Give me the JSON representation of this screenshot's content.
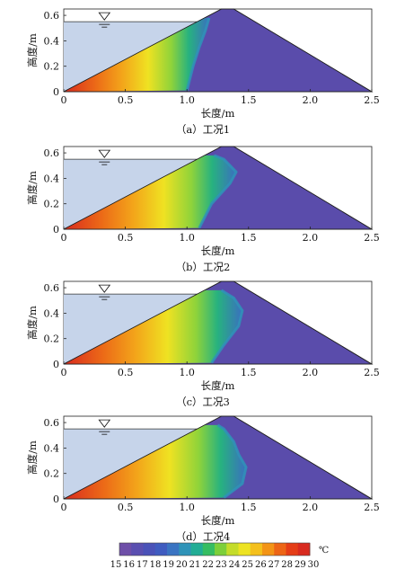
{
  "chart_data": [
    {
      "type": "heatmap",
      "caption": "（a）工况1",
      "xlabel": "长度/m",
      "ylabel": "高度/m",
      "xlim": [
        0,
        2.5
      ],
      "ylim": [
        0,
        0.65
      ],
      "x_ticks": [
        "0",
        "0.5",
        "1.0",
        "1.5",
        "2.0",
        "2.5"
      ],
      "y_ticks": [
        "0",
        "0.2",
        "0.4",
        "0.6"
      ],
      "water_level": 0.55,
      "dam_profile": [
        [
          0,
          0
        ],
        [
          1.28,
          0.65
        ],
        [
          1.38,
          0.65
        ],
        [
          2.5,
          0
        ]
      ],
      "front": [
        [
          1.0,
          0.01
        ],
        [
          1.05,
          0.2
        ],
        [
          1.1,
          0.35
        ],
        [
          1.15,
          0.48
        ],
        [
          1.18,
          0.58
        ]
      ]
    },
    {
      "type": "heatmap",
      "caption": "（b）工况2",
      "xlabel": "长度/m",
      "ylabel": "高度/m",
      "xlim": [
        0,
        2.5
      ],
      "ylim": [
        0,
        0.65
      ],
      "x_ticks": [
        "0",
        "0.5",
        "1.0",
        "1.5",
        "2.0",
        "2.5"
      ],
      "y_ticks": [
        "0",
        "0.2",
        "0.4",
        "0.6"
      ],
      "water_level": 0.55,
      "dam_profile": [
        [
          0,
          0
        ],
        [
          1.28,
          0.65
        ],
        [
          1.38,
          0.65
        ],
        [
          2.5,
          0
        ]
      ],
      "front": [
        [
          1.1,
          0.01
        ],
        [
          1.2,
          0.2
        ],
        [
          1.35,
          0.36
        ],
        [
          1.4,
          0.45
        ],
        [
          1.3,
          0.55
        ],
        [
          1.22,
          0.58
        ]
      ]
    },
    {
      "type": "heatmap",
      "caption": "（c）工况3",
      "xlabel": "长度/m",
      "ylabel": "高度/m",
      "xlim": [
        0,
        2.5
      ],
      "ylim": [
        0,
        0.65
      ],
      "x_ticks": [
        "0",
        "0.5",
        "1.0",
        "1.5",
        "2.0",
        "2.5"
      ],
      "y_ticks": [
        "0",
        "0.2",
        "0.4",
        "0.6"
      ],
      "water_level": 0.55,
      "dam_profile": [
        [
          0,
          0
        ],
        [
          1.28,
          0.65
        ],
        [
          1.38,
          0.65
        ],
        [
          2.5,
          0
        ]
      ],
      "front": [
        [
          1.2,
          0.01
        ],
        [
          1.3,
          0.15
        ],
        [
          1.42,
          0.3
        ],
        [
          1.45,
          0.42
        ],
        [
          1.38,
          0.52
        ],
        [
          1.28,
          0.58
        ]
      ]
    },
    {
      "type": "heatmap",
      "caption": "（d）工况4",
      "xlabel": "长度/m",
      "ylabel": "高度/m",
      "xlim": [
        0,
        2.5
      ],
      "ylim": [
        0,
        0.65
      ],
      "x_ticks": [
        "0",
        "0.5",
        "1.0",
        "1.5",
        "2.0",
        "2.5"
      ],
      "y_ticks": [
        "0",
        "0.2",
        "0.4",
        "0.6"
      ],
      "water_level": 0.55,
      "dam_profile": [
        [
          0,
          0
        ],
        [
          1.28,
          0.65
        ],
        [
          1.38,
          0.65
        ],
        [
          2.5,
          0
        ]
      ],
      "front": [
        [
          1.3,
          0.01
        ],
        [
          1.45,
          0.12
        ],
        [
          1.48,
          0.25
        ],
        [
          1.42,
          0.35
        ],
        [
          1.38,
          0.45
        ],
        [
          1.3,
          0.55
        ],
        [
          1.25,
          0.58
        ]
      ]
    }
  ],
  "colorbar": {
    "unit": "℃",
    "ticks": [
      "15",
      "16",
      "17",
      "18",
      "19",
      "20",
      "21",
      "22",
      "23",
      "24",
      "25",
      "26",
      "27",
      "28",
      "29",
      "30"
    ],
    "colors": [
      "#6e4fa8",
      "#5a4fb0",
      "#4a52b8",
      "#3f5cc0",
      "#3a74c2",
      "#2f93b8",
      "#22ad95",
      "#35bd62",
      "#7ccf3a",
      "#c4dc2a",
      "#ede322",
      "#f4c01c",
      "#f39416",
      "#ed6516",
      "#e53d17",
      "#d82a1f"
    ]
  },
  "colors": {
    "water": "#c6d4ea",
    "dam_cold": "#5a4cab"
  }
}
